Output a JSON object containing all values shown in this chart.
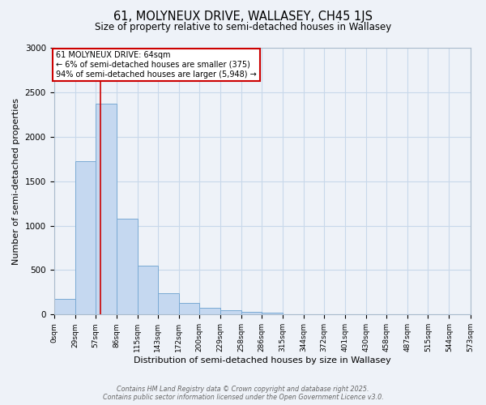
{
  "title1": "61, MOLYNEUX DRIVE, WALLASEY, CH45 1JS",
  "title2": "Size of property relative to semi-detached houses in Wallasey",
  "xlabel": "Distribution of semi-detached houses by size in Wallasey",
  "ylabel": "Number of semi-detached properties",
  "bin_edges": [
    0,
    29,
    57,
    86,
    115,
    143,
    172,
    200,
    229,
    258,
    286,
    315,
    344,
    372,
    401,
    430,
    458,
    487,
    515,
    544,
    573
  ],
  "bin_heights": [
    175,
    1725,
    2375,
    1075,
    550,
    240,
    130,
    80,
    50,
    35,
    20,
    5,
    3,
    2,
    1,
    1,
    1,
    0,
    0,
    0
  ],
  "bar_color": "#c5d8f0",
  "bar_edge_color": "#7aaad4",
  "grid_color": "#c8d8ea",
  "property_size": 64,
  "property_label": "61 MOLYNEUX DRIVE: 64sqm",
  "annotation_line1": "← 6% of semi-detached houses are smaller (375)",
  "annotation_line2": "94% of semi-detached houses are larger (5,948) →",
  "annotation_box_color": "#ffffff",
  "annotation_box_edge": "#cc0000",
  "vline_color": "#cc0000",
  "ylim": [
    0,
    3000
  ],
  "xlim": [
    0,
    573
  ],
  "tick_fontsize": 6.5,
  "footer1": "Contains HM Land Registry data © Crown copyright and database right 2025.",
  "footer2": "Contains public sector information licensed under the Open Government Licence v3.0.",
  "bg_color": "#eef2f8"
}
